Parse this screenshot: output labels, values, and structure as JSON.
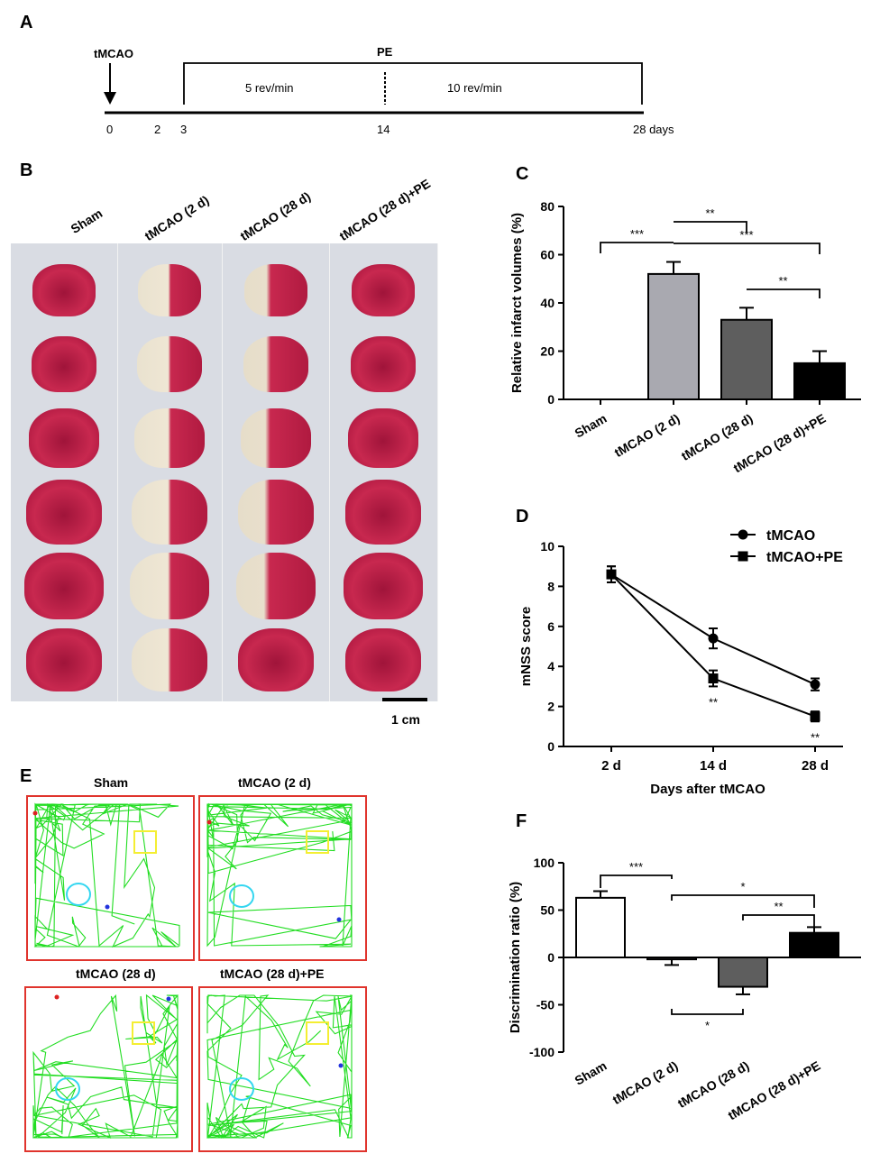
{
  "panel_a": {
    "letter": "A",
    "event_label": "tMCAO",
    "pe_label": "PE",
    "phase1": "5 rev/min",
    "phase2": "10 rev/min",
    "ticks": [
      "0",
      "2",
      "3",
      "14",
      "28 days"
    ]
  },
  "panel_b": {
    "letter": "B",
    "columns": [
      "Sham",
      "tMCAO (2 d)",
      "tMCAO (28 d)",
      "tMCAO (28 d)+PE"
    ],
    "scale_label": "1 cm"
  },
  "panel_e": {
    "letter": "E",
    "mazes": [
      "Sham",
      "tMCAO (2 d)",
      "tMCAO (28 d)",
      "tMCAO (28 d)+PE"
    ],
    "colors": {
      "path": "#22dd22",
      "square": "#f4ee32",
      "circle": "#33d6f0",
      "border": "#e0342d"
    }
  },
  "chart_data": [
    {
      "panel": "C",
      "type": "bar",
      "categories": [
        "Sham",
        "tMCAO (2 d)",
        "tMCAO (28 d)",
        "tMCAO (28 d)+PE"
      ],
      "values": [
        0,
        52,
        33,
        15
      ],
      "errors": [
        0,
        5,
        5,
        5
      ],
      "colors": [
        "#ffffff",
        "#a9a9b0",
        "#5e5e5e",
        "#000000"
      ],
      "ylabel": "Relative infarct volumes (%)",
      "ylim": [
        0,
        80
      ],
      "yticks": [
        "0",
        "20",
        "40",
        "60",
        "80"
      ],
      "significance": [
        {
          "from": 0,
          "to": 1,
          "label": "***"
        },
        {
          "from": 1,
          "to": 2,
          "label": "**"
        },
        {
          "from": 1,
          "to": 3,
          "label": "***"
        },
        {
          "from": 2,
          "to": 3,
          "label": "**"
        }
      ]
    },
    {
      "panel": "D",
      "type": "line",
      "x": [
        "2 d",
        "14 d",
        "28 d"
      ],
      "series": [
        {
          "name": "tMCAO",
          "values": [
            8.6,
            5.4,
            3.1
          ],
          "errors": [
            0.4,
            0.5,
            0.3
          ],
          "marker": "circle"
        },
        {
          "name": "tMCAO+PE",
          "values": [
            8.6,
            3.4,
            1.5
          ],
          "errors": [
            0.4,
            0.4,
            0.25
          ],
          "marker": "square"
        }
      ],
      "annotations": [
        {
          "x": "14 d",
          "label": "**"
        },
        {
          "x": "28 d",
          "label": "**"
        }
      ],
      "xlabel": "Days after tMCAO",
      "ylabel": "mNSS score",
      "ylim": [
        0,
        10
      ],
      "yticks": [
        "0",
        "2",
        "4",
        "6",
        "8",
        "10"
      ]
    },
    {
      "panel": "F",
      "type": "bar",
      "categories": [
        "Sham",
        "tMCAO (2 d)",
        "tMCAO (28 d)",
        "tMCAO (28 d)+PE"
      ],
      "values": [
        63,
        -2,
        -31,
        26
      ],
      "errors": [
        7,
        6,
        8,
        6
      ],
      "colors": [
        "#ffffff",
        "#a9a9b0",
        "#5e5e5e",
        "#000000"
      ],
      "ylabel": "Discrimination ratio (%)",
      "ylim": [
        -100,
        100
      ],
      "yticks": [
        "-100",
        "-50",
        "0",
        "50",
        "100"
      ],
      "significance": [
        {
          "from": 0,
          "to": 1,
          "label": "***",
          "side": "top"
        },
        {
          "from": 1,
          "to": 3,
          "label": "*",
          "side": "top"
        },
        {
          "from": 2,
          "to": 3,
          "label": "**",
          "side": "top"
        },
        {
          "from": 1,
          "to": 2,
          "label": "*",
          "side": "bottom"
        }
      ]
    }
  ]
}
